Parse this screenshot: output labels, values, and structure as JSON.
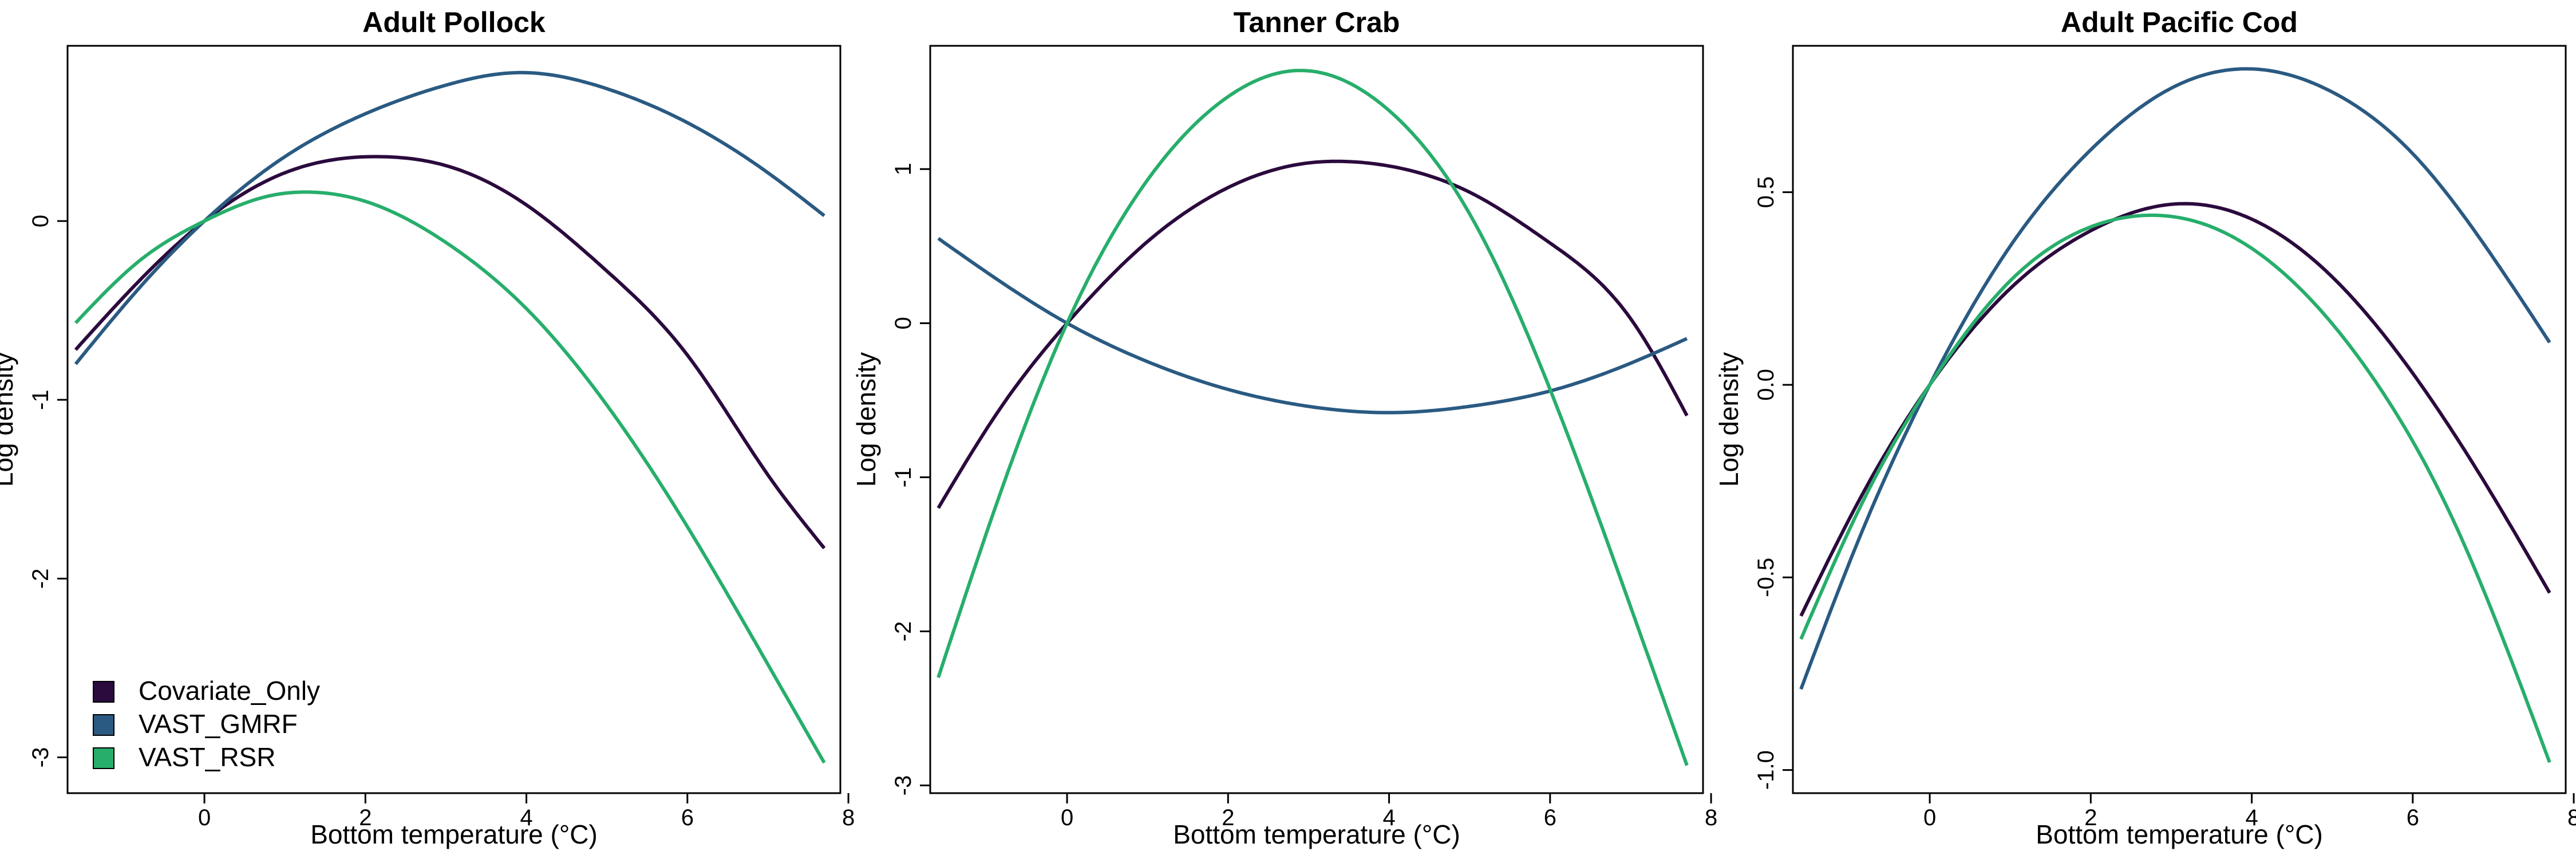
{
  "figure": {
    "colors": {
      "Covariate_Only": "#2b0a3d",
      "VAST_GMRF": "#2a5a82",
      "VAST_RSR": "#27ae6b"
    }
  },
  "chart_data": [
    {
      "type": "line",
      "title": "Adult Pollock",
      "xlabel": "Bottom temperature (°C)",
      "ylabel": "Log density",
      "xlim": [
        -1.7,
        7.9
      ],
      "ylim": [
        -3.2,
        0.98
      ],
      "xticks": [
        0,
        2,
        4,
        6,
        8
      ],
      "yticks": [
        -3,
        -2,
        -1,
        0
      ],
      "xtick_labels": [
        "0",
        "2",
        "4",
        "6",
        "8"
      ],
      "ytick_labels": [
        "-3",
        "-2",
        "-1",
        "0"
      ],
      "grid": false,
      "legend_position": "bottom-left",
      "legend": [
        "Covariate_Only",
        "VAST_GMRF",
        "VAST_RSR"
      ],
      "series": [
        {
          "name": "Covariate_Only",
          "x": [
            -1.6,
            -0.8,
            0,
            1.0,
            2.2,
            3.0,
            4.0,
            5.0,
            6.0,
            7.0,
            7.7
          ],
          "y": [
            -0.72,
            -0.33,
            0.0,
            0.27,
            0.36,
            0.31,
            0.09,
            -0.28,
            -0.75,
            -1.42,
            -1.83
          ]
        },
        {
          "name": "VAST_GMRF",
          "x": [
            -1.6,
            -0.8,
            0,
            1.0,
            2.0,
            3.0,
            3.9,
            5.0,
            6.0,
            7.0,
            7.7
          ],
          "y": [
            -0.8,
            -0.37,
            0.0,
            0.36,
            0.6,
            0.76,
            0.83,
            0.74,
            0.55,
            0.27,
            0.03
          ]
        },
        {
          "name": "VAST_RSR",
          "x": [
            -1.6,
            -0.8,
            0,
            0.8,
            1.4,
            2.0,
            3.0,
            4.0,
            5.0,
            6.0,
            7.0,
            7.7
          ],
          "y": [
            -0.57,
            -0.22,
            0.0,
            0.14,
            0.16,
            0.11,
            -0.12,
            -0.49,
            -1.03,
            -1.71,
            -2.48,
            -3.03
          ]
        }
      ]
    },
    {
      "type": "line",
      "title": "Tanner Crab",
      "xlabel": "Bottom temperature (°C)",
      "ylabel": "Log density",
      "xlim": [
        -1.7,
        7.9
      ],
      "ylim": [
        -3.05,
        1.8
      ],
      "xticks": [
        0,
        2,
        4,
        6,
        8
      ],
      "yticks": [
        -3,
        -2,
        -1,
        0,
        1
      ],
      "xtick_labels": [
        "0",
        "2",
        "4",
        "6",
        "8"
      ],
      "ytick_labels": [
        "-3",
        "-2",
        "-1",
        "0",
        "1"
      ],
      "grid": false,
      "series": [
        {
          "name": "Covariate_Only",
          "x": [
            -1.6,
            -0.8,
            0,
            1.0,
            2.0,
            3.0,
            3.4,
            4.0,
            5.0,
            6.0,
            7.0,
            7.7
          ],
          "y": [
            -1.2,
            -0.53,
            0.0,
            0.53,
            0.88,
            1.04,
            1.05,
            1.02,
            0.85,
            0.52,
            0.03,
            -0.6
          ]
        },
        {
          "name": "VAST_GMRF",
          "x": [
            -1.6,
            -0.8,
            0,
            1.0,
            2.0,
            3.0,
            4.1,
            5.0,
            6.0,
            7.0,
            7.7
          ],
          "y": [
            0.55,
            0.26,
            0.0,
            -0.25,
            -0.43,
            -0.54,
            -0.58,
            -0.54,
            -0.44,
            -0.26,
            -0.1
          ]
        },
        {
          "name": "VAST_RSR",
          "x": [
            -1.6,
            -0.8,
            0,
            1.0,
            2.0,
            2.9,
            4.0,
            5.0,
            6.0,
            7.0,
            7.7
          ],
          "y": [
            -2.3,
            -1.06,
            0.0,
            0.93,
            1.47,
            1.64,
            1.38,
            0.71,
            -0.43,
            -1.84,
            -2.87
          ]
        }
      ]
    },
    {
      "type": "line",
      "title": "Adult Pacific Cod",
      "xlabel": "Bottom temperature (°C)",
      "ylabel": "Log density",
      "xlim": [
        -1.7,
        7.9
      ],
      "ylim": [
        -1.06,
        0.88
      ],
      "xticks": [
        0,
        2,
        4,
        6,
        8
      ],
      "yticks": [
        -1.0,
        -0.5,
        0.0,
        0.5
      ],
      "xtick_labels": [
        "0",
        "2",
        "4",
        "6",
        "8"
      ],
      "ytick_labels": [
        "-1.0",
        "-0.5",
        "0.0",
        "0.5"
      ],
      "grid": false,
      "series": [
        {
          "name": "Covariate_Only",
          "x": [
            -1.6,
            -0.8,
            0,
            1.0,
            2.0,
            3.1,
            4.0,
            5.0,
            6.0,
            7.0,
            7.7
          ],
          "y": [
            -0.6,
            -0.27,
            0.0,
            0.25,
            0.4,
            0.47,
            0.43,
            0.28,
            0.03,
            -0.29,
            -0.54
          ]
        },
        {
          "name": "VAST_GMRF",
          "x": [
            -1.6,
            -0.8,
            0,
            1.0,
            2.0,
            3.0,
            4.0,
            5.0,
            6.0,
            7.0,
            7.7
          ],
          "y": [
            -0.79,
            -0.36,
            0.0,
            0.36,
            0.61,
            0.77,
            0.82,
            0.76,
            0.6,
            0.33,
            0.11
          ]
        },
        {
          "name": "VAST_RSR",
          "x": [
            -1.6,
            -0.8,
            0,
            1.0,
            2.0,
            2.7,
            3.5,
            4.5,
            5.5,
            6.5,
            7.7
          ],
          "y": [
            -0.66,
            -0.29,
            0.0,
            0.27,
            0.41,
            0.44,
            0.41,
            0.27,
            0.02,
            -0.35,
            -0.98
          ]
        }
      ]
    }
  ]
}
